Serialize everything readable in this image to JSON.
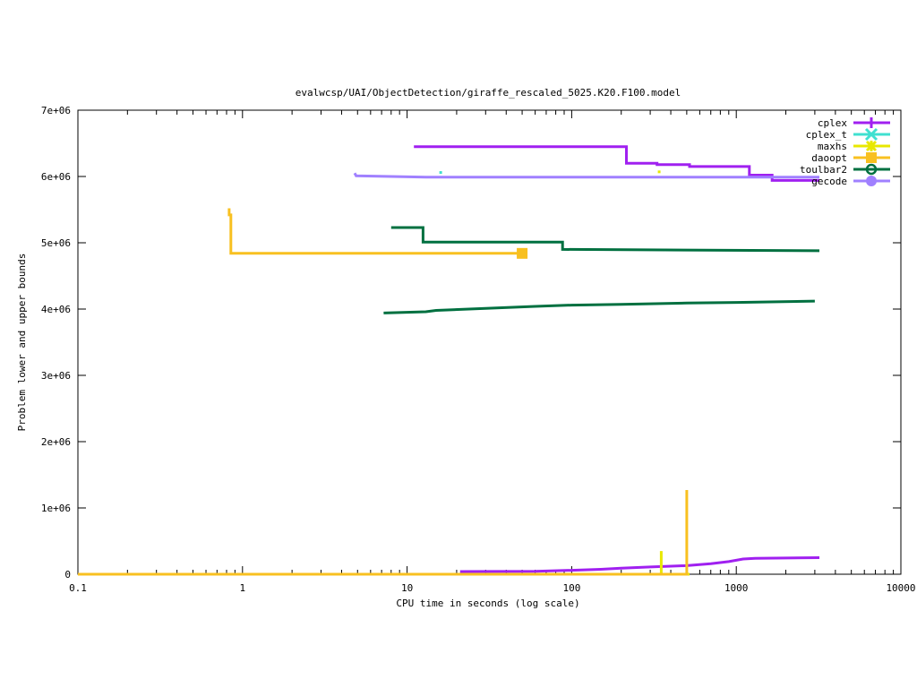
{
  "chart_data": {
    "type": "line",
    "title": "evalwcsp/UAI/ObjectDetection/giraffe_rescaled_5025.K20.F100.model",
    "xlabel": "CPU time in seconds (log scale)",
    "ylabel": "Problem lower and upper bounds",
    "x_scale": "log",
    "xlim": [
      0.1,
      10000
    ],
    "ylim": [
      0,
      7000000
    ],
    "x_ticks": [
      {
        "value": 0.1,
        "label": "0.1"
      },
      {
        "value": 1,
        "label": "1"
      },
      {
        "value": 10,
        "label": "10"
      },
      {
        "value": 100,
        "label": "100"
      },
      {
        "value": 1000,
        "label": "1000"
      },
      {
        "value": 10000,
        "label": "10000"
      }
    ],
    "y_ticks": [
      {
        "value": 0,
        "label": "0"
      },
      {
        "value": 1000000,
        "label": "1e+06"
      },
      {
        "value": 2000000,
        "label": "2e+06"
      },
      {
        "value": 3000000,
        "label": "3e+06"
      },
      {
        "value": 4000000,
        "label": "4e+06"
      },
      {
        "value": 5000000,
        "label": "5e+06"
      },
      {
        "value": 6000000,
        "label": "6e+06"
      },
      {
        "value": 7000000,
        "label": "7e+06"
      }
    ],
    "grid": false,
    "legend_position": "top-right",
    "series": [
      {
        "name": "cplex",
        "color": "#a020f0",
        "marker": "plus",
        "segments": [
          [
            [
              11,
              6450000
            ],
            [
              215,
              6450000
            ],
            [
              215,
              6200000
            ],
            [
              330,
              6200000
            ],
            [
              330,
              6180000
            ],
            [
              520,
              6180000
            ],
            [
              520,
              6150000
            ],
            [
              1200,
              6150000
            ],
            [
              1200,
              6020000
            ],
            [
              1650,
              6020000
            ],
            [
              1650,
              5940000
            ],
            [
              3200,
              5940000
            ]
          ],
          [
            [
              21,
              40000
            ],
            [
              60,
              45000
            ],
            [
              100,
              60000
            ],
            [
              150,
              75000
            ],
            [
              200,
              90000
            ],
            [
              300,
              110000
            ],
            [
              500,
              130000
            ],
            [
              700,
              160000
            ],
            [
              900,
              190000
            ],
            [
              1100,
              230000
            ],
            [
              1300,
              240000
            ],
            [
              3200,
              250000
            ]
          ]
        ],
        "markers": []
      },
      {
        "name": "cplex_t",
        "color": "#40e0d0",
        "marker": "cross",
        "segments": [],
        "markers": [
          [
            16,
            6060000
          ]
        ]
      },
      {
        "name": "maxhs",
        "color": "#e8e800",
        "marker": "star",
        "segments": [
          [
            [
              0.1,
              0
            ],
            [
              350,
              0
            ],
            [
              350,
              350000
            ],
            [
              350,
              0
            ],
            [
              520,
              0
            ]
          ]
        ],
        "markers": [
          [
            340,
            6070000
          ]
        ]
      },
      {
        "name": "daoopt",
        "color": "#f8c020",
        "marker": "square",
        "segments": [
          [
            [
              0.83,
              5520000
            ],
            [
              0.83,
              5420000
            ],
            [
              0.85,
              5420000
            ],
            [
              0.85,
              4840000
            ],
            [
              50,
              4840000
            ]
          ],
          [
            [
              0.1,
              0
            ],
            [
              500,
              0
            ],
            [
              500,
              1270000
            ],
            [
              500,
              0
            ]
          ]
        ],
        "markers": [
          [
            50,
            4840000
          ]
        ]
      },
      {
        "name": "toulbar2",
        "color": "#007040",
        "marker": "circle",
        "segments": [
          [
            [
              8,
              5230000
            ],
            [
              12.5,
              5230000
            ],
            [
              12.5,
              5010000
            ],
            [
              88,
              5010000
            ],
            [
              88,
              4900000
            ],
            [
              3200,
              4880000
            ]
          ],
          [
            [
              7.2,
              3940000
            ],
            [
              13,
              3960000
            ],
            [
              15,
              3980000
            ],
            [
              30,
              4010000
            ],
            [
              60,
              4040000
            ],
            [
              100,
              4060000
            ],
            [
              200,
              4070000
            ],
            [
              500,
              4090000
            ],
            [
              1000,
              4100000
            ],
            [
              3000,
              4120000
            ]
          ]
        ],
        "markers": []
      },
      {
        "name": "gecode",
        "color": "#a080ff",
        "marker": "filled-circle",
        "segments": [
          [
            [
              4.8,
              6050000
            ],
            [
              4.9,
              6010000
            ],
            [
              13,
              5990000
            ],
            [
              3200,
              5990000
            ]
          ]
        ],
        "markers": []
      }
    ]
  }
}
